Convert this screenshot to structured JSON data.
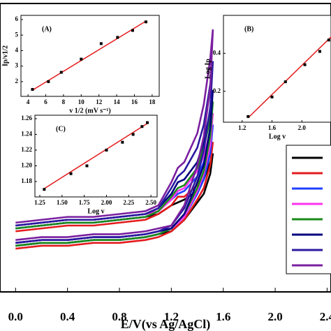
{
  "chart_data": [
    {
      "type": "line",
      "x_label": "E/V(vs Ag/AgCl)",
      "x": [
        0,
        0.2,
        0.4,
        0.6,
        0.8,
        1.0,
        1.1,
        1.2,
        1.25,
        1.3,
        1.4,
        1.45,
        1.5,
        1.52,
        1.5,
        1.45,
        1.4,
        1.3,
        1.2,
        1.1,
        1.0,
        0.8,
        0.6,
        0.4,
        0.2,
        0
      ],
      "xlim": [
        -0.12,
        2.43
      ],
      "ylim": [
        0,
        100
      ],
      "xticks": [
        {
          "value": 0,
          "label": "0.0"
        },
        0.4,
        0.8,
        1.2,
        1.6,
        {
          "value": 2,
          "label": "2.0"
        },
        2.4
      ],
      "series": [
        {
          "color": "#000000",
          "values": [
            22,
            23,
            24,
            24,
            25,
            26,
            27,
            30,
            31,
            32,
            35,
            39,
            45,
            48,
            41,
            34,
            31,
            25,
            21,
            20,
            19,
            18,
            18,
            17,
            17,
            16
          ]
        },
        {
          "color": "#e41a1c",
          "values": [
            21,
            22,
            23,
            23,
            24,
            25,
            27,
            30,
            33,
            33,
            37,
            41,
            48,
            52,
            44,
            36,
            32,
            25,
            21,
            19,
            18,
            17,
            17,
            16,
            16,
            15
          ]
        },
        {
          "color": "#1f3fff",
          "values": [
            22,
            23,
            24,
            24,
            25,
            26,
            28,
            32,
            34,
            35,
            40,
            45,
            53,
            58,
            48,
            39,
            34,
            26,
            22,
            20,
            19,
            18,
            18,
            17,
            17,
            16
          ]
        },
        {
          "color": "#ff33ee",
          "values": [
            23,
            24,
            25,
            25,
            26,
            27,
            28,
            32,
            35,
            36,
            42,
            47,
            56,
            62,
            51,
            41,
            35,
            26,
            22,
            21,
            20,
            19,
            19,
            18,
            18,
            17
          ]
        },
        {
          "color": "#1a8a1a",
          "values": [
            22,
            23,
            24,
            24,
            25,
            26,
            28,
            33,
            36,
            37,
            43,
            50,
            60,
            66,
            54,
            42,
            36,
            27,
            22,
            20,
            19,
            18,
            18,
            17,
            17,
            16
          ]
        },
        {
          "color": "#000080",
          "values": [
            23,
            24,
            25,
            25,
            26,
            27,
            29,
            34,
            38,
            39,
            45,
            52,
            63,
            70,
            57,
            44,
            38,
            27,
            22,
            21,
            20,
            19,
            19,
            18,
            18,
            17
          ]
        },
        {
          "color": "#2a1aa0",
          "values": [
            23,
            24,
            25,
            25,
            26,
            27,
            29,
            36,
            40,
            42,
            50,
            58,
            72,
            80,
            64,
            49,
            40,
            29,
            23,
            21,
            20,
            19,
            19,
            18,
            18,
            17
          ]
        },
        {
          "color": "#7a1fa0",
          "values": [
            24,
            25,
            26,
            26,
            27,
            28,
            30,
            38,
            43,
            45,
            55,
            65,
            81,
            91,
            71,
            54,
            44,
            30,
            23,
            22,
            21,
            20,
            20,
            19,
            19,
            18
          ]
        }
      ]
    },
    {
      "type": "scatter",
      "panel_label": "(A)",
      "x_label": "v 1/2 (mV s⁻¹)",
      "y_label": "Ip/v1/2",
      "x": [
        4.5,
        6.3,
        7.75,
        10,
        12.25,
        14.1,
        15.8,
        17.3
      ],
      "values": [
        1.5,
        2.0,
        2.6,
        3.45,
        4.45,
        4.85,
        5.3,
        5.85
      ],
      "color": "#000000",
      "fit": {
        "x": [
          4.5,
          17.3
        ],
        "values": [
          1.45,
          5.9
        ],
        "color": "#e41a1c"
      },
      "xlim": [
        3.2,
        18.8
      ],
      "ylim": [
        1.05,
        6.27
      ],
      "xticks": [
        4,
        6,
        8,
        10,
        12,
        14,
        16,
        18
      ],
      "yticks": [
        2,
        3,
        4,
        5,
        6
      ]
    },
    {
      "type": "scatter",
      "panel_label": "(B)",
      "x_label": "Log v",
      "y_label": "Log Ip",
      "x": [
        1.28,
        1.6,
        1.78,
        2.04,
        2.24,
        2.36
      ],
      "values": [
        0.067,
        0.17,
        0.25,
        0.34,
        0.41,
        0.47
      ],
      "color": "#000000",
      "fit": {
        "x": [
          1.28,
          2.4
        ],
        "values": [
          0.06,
          0.49
        ],
        "color": "#e41a1c"
      },
      "xlim": [
        0.95,
        2.39
      ],
      "ylim": [
        0.037,
        0.6
      ],
      "xticks": [
        1.2,
        1.6,
        {
          "value": 2,
          "label": "2.0"
        }
      ],
      "yticks": [
        0.2,
        0.4
      ]
    },
    {
      "type": "scatter",
      "panel_label": "(C)",
      "x_label": "Log v",
      "x": [
        1.3,
        1.6,
        1.78,
        2.0,
        2.18,
        2.3,
        2.4,
        2.46
      ],
      "values": [
        1.17,
        1.19,
        1.2,
        1.22,
        1.23,
        1.24,
        1.25,
        1.255
      ],
      "color": "#000000",
      "fit": {
        "x": [
          1.3,
          2.46
        ],
        "values": [
          1.171,
          1.254
        ],
        "color": "#e41a1c"
      },
      "xlim": [
        1.195,
        2.57
      ],
      "ylim": [
        1.1604,
        1.2644
      ],
      "xticks": [
        1.25,
        {
          "value": 1.5,
          "label": "1.50"
        },
        1.75,
        {
          "value": 2,
          "label": "2.00"
        },
        2.25,
        {
          "value": 2.5,
          "label": "2.50"
        }
      ],
      "yticks": [
        1.18,
        {
          "value": 1.2,
          "label": "1.20"
        },
        1.22,
        1.24,
        1.26
      ]
    }
  ]
}
